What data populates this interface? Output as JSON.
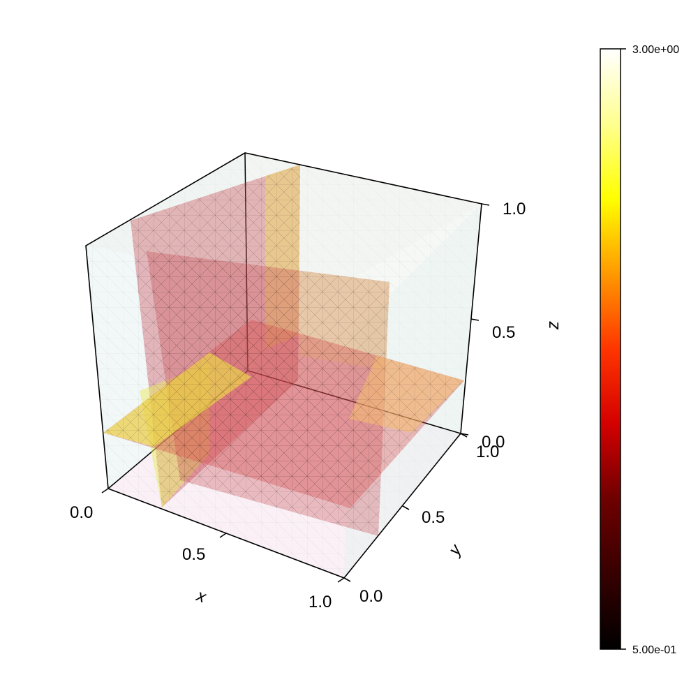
{
  "chart_data": {
    "type": "3d-slice",
    "colormap": "hot",
    "axes": {
      "x": {
        "label": "x",
        "ticks": [
          "0.0",
          "0.5",
          "1.0"
        ],
        "range": [
          0,
          1
        ]
      },
      "y": {
        "label": "y",
        "ticks": [
          "0.0",
          "0.5",
          "1.0"
        ],
        "range": [
          0,
          1
        ]
      },
      "z": {
        "label": "z",
        "ticks": [
          "0.0",
          "0.5",
          "1.0"
        ],
        "range": [
          0,
          1
        ]
      }
    },
    "slices": [
      {
        "plane": "x",
        "value": 0.35
      },
      {
        "plane": "y",
        "value": 0.5
      },
      {
        "plane": "z",
        "value": 0.25
      }
    ],
    "colorbar": {
      "min": 0.5,
      "max": 3.0,
      "min_label": "5.00e-01",
      "max_label": "3.00e+00"
    }
  }
}
